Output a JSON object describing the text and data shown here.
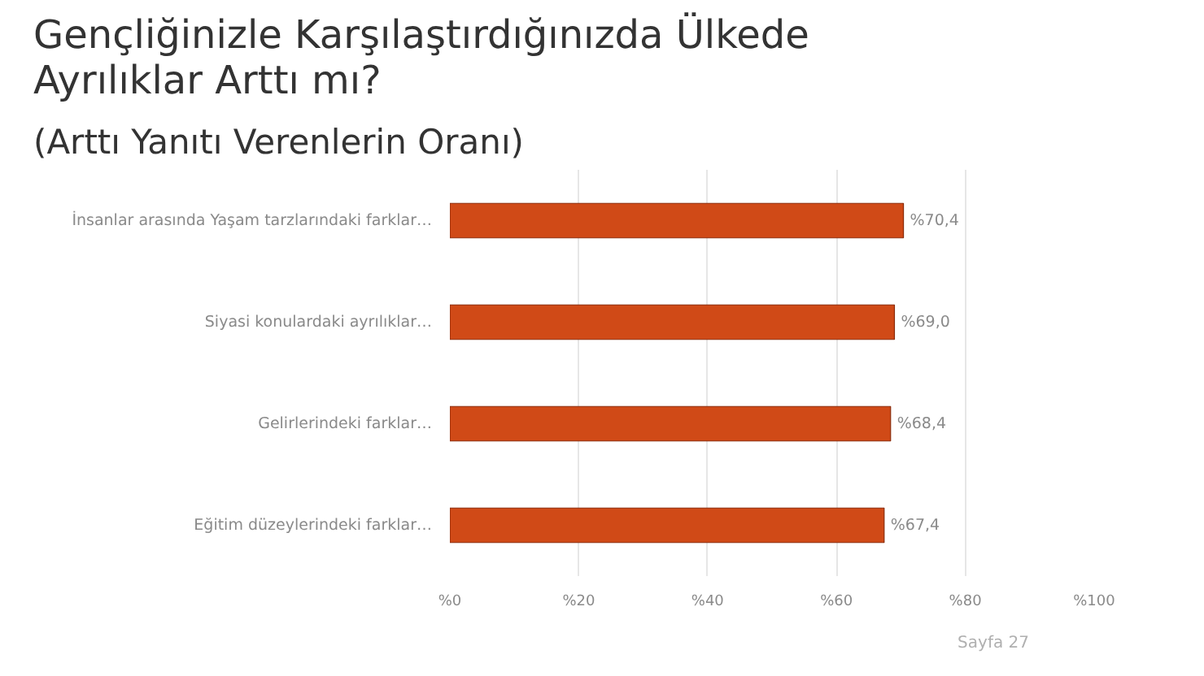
{
  "chart_data": {
    "type": "bar",
    "orientation": "horizontal",
    "title": "Gençliğinizle Karşılaştırdığınızda Ülkede Ayrılıklar Arttı mı?",
    "subtitle": "(Arttı Yanıtı Verenlerin Oranı)",
    "categories": [
      "İnsanlar arasında Yaşam tarzlarındaki farklar…",
      "Siyasi konulardaki ayrılıklar…",
      "Gelirlerindeki farklar…",
      "Eğitim düzeylerindeki farklar…"
    ],
    "values": [
      70.4,
      69.0,
      68.4,
      67.4
    ],
    "value_labels": [
      "%70,4",
      "%69,0",
      "%68,4",
      "%67,4"
    ],
    "color": "#d04a17",
    "xlim": [
      0,
      100
    ],
    "xticks": [
      {
        "value": 0,
        "label": "%0"
      },
      {
        "value": 20,
        "label": "%20"
      },
      {
        "value": 40,
        "label": "%40"
      },
      {
        "value": 60,
        "label": "%60"
      },
      {
        "value": 80,
        "label": "%80"
      },
      {
        "value": 100,
        "label": "%100"
      }
    ],
    "grid": "x",
    "annotations": [
      "Sayfa 27"
    ]
  }
}
